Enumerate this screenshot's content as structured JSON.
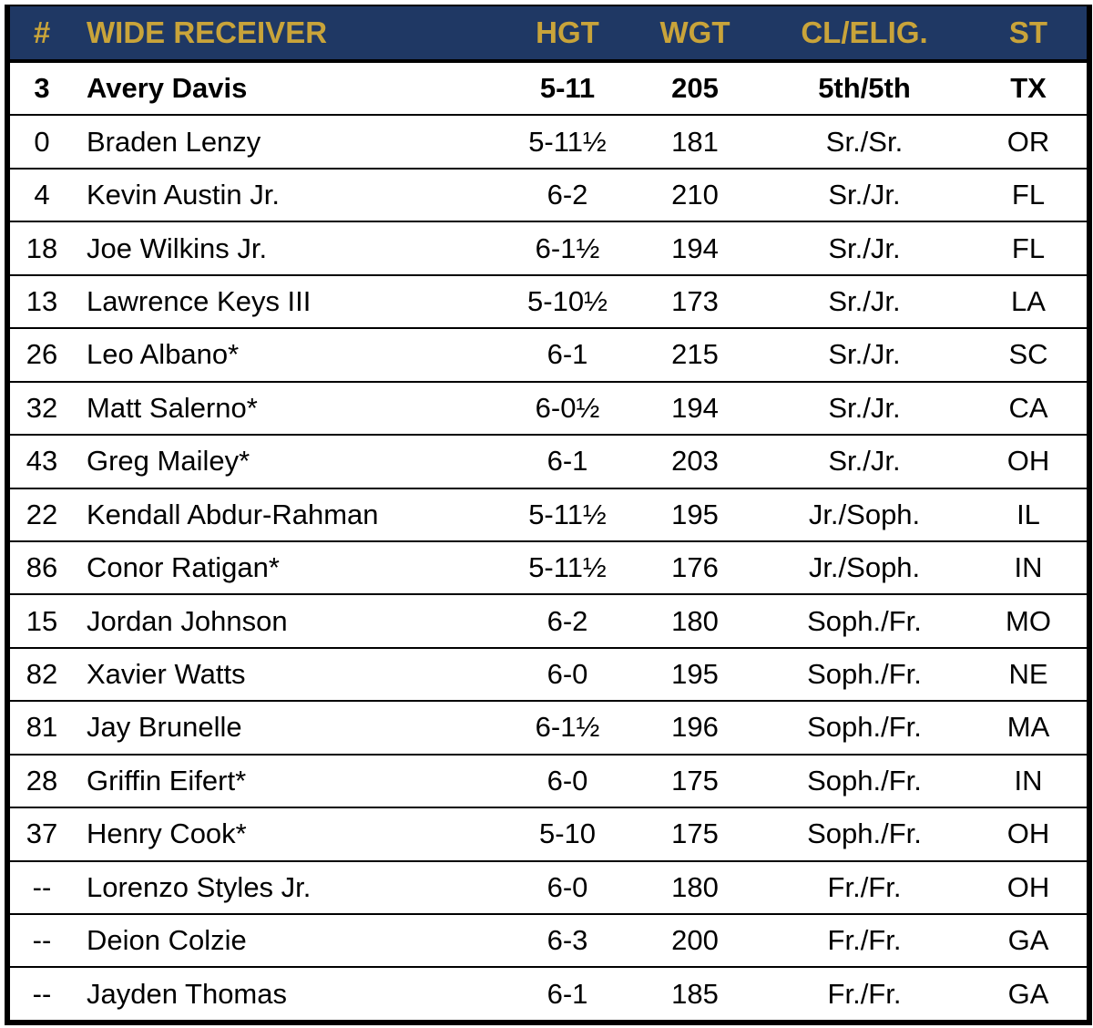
{
  "colors": {
    "header_bg": "#1f3864",
    "header_text": "#c9a43a"
  },
  "headers": [
    "#",
    "WIDE RECEIVER",
    "HGT",
    "WGT",
    "CL/ELIG.",
    "ST"
  ],
  "rows": [
    {
      "num": "3",
      "name": "Avery Davis",
      "hgt": "5-11",
      "wgt": "205",
      "cl": "5th/5th",
      "st": "TX",
      "bold": true
    },
    {
      "num": "0",
      "name": "Braden Lenzy",
      "hgt": "5-11½",
      "wgt": "181",
      "cl": "Sr./Sr.",
      "st": "OR"
    },
    {
      "num": "4",
      "name": "Kevin Austin Jr.",
      "hgt": "6-2",
      "wgt": "210",
      "cl": "Sr./Jr.",
      "st": "FL"
    },
    {
      "num": "18",
      "name": "Joe Wilkins Jr.",
      "hgt": "6-1½",
      "wgt": "194",
      "cl": "Sr./Jr.",
      "st": "FL"
    },
    {
      "num": "13",
      "name": "Lawrence Keys III",
      "hgt": "5-10½",
      "wgt": "173",
      "cl": "Sr./Jr.",
      "st": "LA"
    },
    {
      "num": "26",
      "name": "Leo Albano*",
      "hgt": "6-1",
      "wgt": "215",
      "cl": "Sr./Jr.",
      "st": "SC"
    },
    {
      "num": "32",
      "name": "Matt Salerno*",
      "hgt": "6-0½",
      "wgt": "194",
      "cl": "Sr./Jr.",
      "st": "CA"
    },
    {
      "num": "43",
      "name": "Greg Mailey*",
      "hgt": "6-1",
      "wgt": "203",
      "cl": "Sr./Jr.",
      "st": "OH"
    },
    {
      "num": "22",
      "name": "Kendall Abdur-Rahman",
      "hgt": "5-11½",
      "wgt": "195",
      "cl": "Jr./Soph.",
      "st": "IL"
    },
    {
      "num": "86",
      "name": "Conor Ratigan*",
      "hgt": "5-11½",
      "wgt": "176",
      "cl": "Jr./Soph.",
      "st": "IN"
    },
    {
      "num": "15",
      "name": "Jordan Johnson",
      "hgt": "6-2",
      "wgt": "180",
      "cl": "Soph./Fr.",
      "st": "MO"
    },
    {
      "num": "82",
      "name": "Xavier Watts",
      "hgt": "6-0",
      "wgt": "195",
      "cl": "Soph./Fr.",
      "st": "NE"
    },
    {
      "num": "81",
      "name": "Jay Brunelle",
      "hgt": "6-1½",
      "wgt": "196",
      "cl": "Soph./Fr.",
      "st": "MA"
    },
    {
      "num": "28",
      "name": "Griffin Eifert*",
      "hgt": "6-0",
      "wgt": "175",
      "cl": "Soph./Fr.",
      "st": "IN"
    },
    {
      "num": "37",
      "name": "Henry Cook*",
      "hgt": "5-10",
      "wgt": "175",
      "cl": "Soph./Fr.",
      "st": "OH"
    },
    {
      "num": "--",
      "name": "Lorenzo Styles Jr.",
      "hgt": "6-0",
      "wgt": "180",
      "cl": "Fr./Fr.",
      "st": "OH"
    },
    {
      "num": "--",
      "name": "Deion Colzie",
      "hgt": "6-3",
      "wgt": "200",
      "cl": "Fr./Fr.",
      "st": "GA"
    },
    {
      "num": "--",
      "name": "Jayden Thomas",
      "hgt": "6-1",
      "wgt": "185",
      "cl": "Fr./Fr.",
      "st": "GA"
    }
  ]
}
